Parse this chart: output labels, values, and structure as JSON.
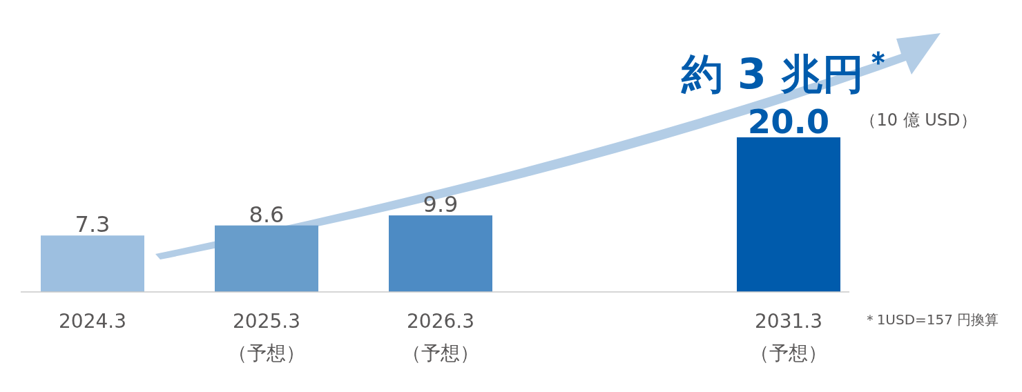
{
  "chart_data": {
    "type": "bar",
    "categories": [
      "2024.3",
      "2025.3\n（予想）",
      "2026.3\n（予想）",
      null,
      "2031.3\n（予想）"
    ],
    "values": [
      7.3,
      8.6,
      9.9,
      null,
      20.0
    ],
    "colors": [
      "#9dbfe0",
      "#689dcb",
      "#4d8bc4",
      null,
      "#005bac"
    ],
    "value_labels": [
      "7.3",
      "8.6",
      "9.9",
      null,
      "20.0"
    ],
    "annotations": [
      "約 3 兆円$^{＊}$",
      "（10 億 USD）",
      "＊1USD=157 円換算"
    ]
  }
}
